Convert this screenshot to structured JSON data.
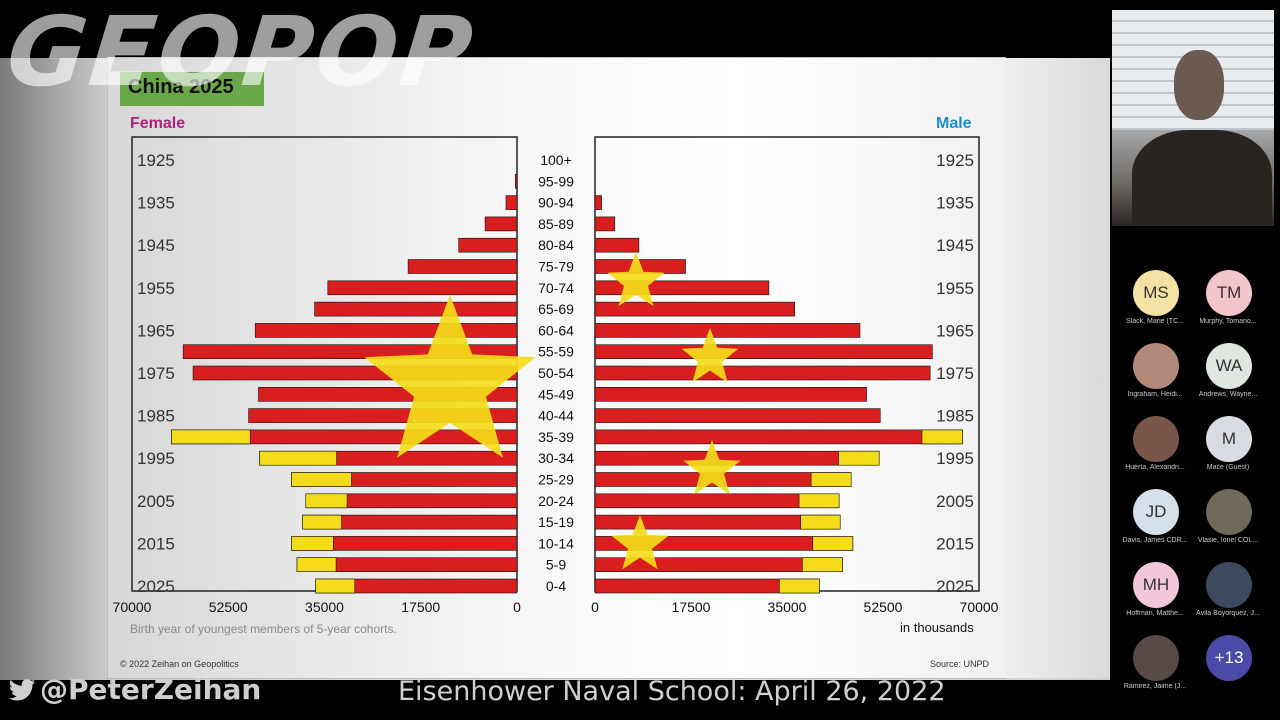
{
  "watermark": "GEOPOP",
  "slide": {
    "title": "China 2025",
    "female_label": "Female",
    "male_label": "Male",
    "footnote_left": "Birth year of youngest members of 5-year cohorts.",
    "footnote_right": "in thousands",
    "copyright": "© 2022 Zeihan on Geopolitics",
    "source": "Source: UNPD"
  },
  "chart_data": {
    "type": "bar",
    "title": "China 2025",
    "orientation": "horizontal population pyramid",
    "xlabel": "in thousands",
    "xlim": [
      0,
      70000
    ],
    "x_ticks_left": [
      "70000",
      "52500",
      "35000",
      "17500",
      "0"
    ],
    "x_ticks_right": [
      "0",
      "17500",
      "35000",
      "52500",
      "70000"
    ],
    "age_groups": [
      "100+",
      "95-99",
      "90-94",
      "85-89",
      "80-84",
      "75-79",
      "70-74",
      "65-69",
      "60-64",
      "55-59",
      "50-54",
      "45-49",
      "40-44",
      "35-39",
      "30-34",
      "25-29",
      "20-24",
      "15-19",
      "10-14",
      "5-9",
      "0-4"
    ],
    "birth_year_labels": [
      "1925",
      "1935",
      "1945",
      "1955",
      "1965",
      "1975",
      "1985",
      "1995",
      "2005",
      "2015",
      "2025"
    ],
    "birth_year_label_rows": [
      0,
      2,
      4,
      6,
      8,
      10,
      12,
      14,
      16,
      18,
      20
    ],
    "series": [
      {
        "name": "Female",
        "color": "#d81e1e",
        "highlight_color": "#f4dc1a",
        "values": [
          0,
          300,
          2000,
          5800,
          10600,
          19800,
          34400,
          36800,
          47600,
          60700,
          58900,
          47000,
          48800,
          62800,
          46800,
          41000,
          38400,
          39000,
          41000,
          40000,
          36600
        ],
        "highlight_values": [
          0,
          0,
          0,
          0,
          0,
          0,
          0,
          0,
          0,
          0,
          0,
          0,
          0,
          14300,
          14000,
          10900,
          7500,
          7100,
          7600,
          7100,
          7100
        ]
      },
      {
        "name": "Male",
        "color": "#d81e1e",
        "highlight_color": "#f4dc1a",
        "values": [
          0,
          0,
          1200,
          3600,
          8000,
          16500,
          31700,
          36400,
          48300,
          61500,
          61100,
          49500,
          52000,
          67000,
          51800,
          46700,
          44500,
          44700,
          47000,
          45100,
          40900
        ],
        "highlight_values": [
          0,
          0,
          0,
          0,
          0,
          0,
          0,
          0,
          0,
          0,
          0,
          0,
          0,
          7400,
          7400,
          7300,
          7300,
          7200,
          7300,
          7300,
          7300
        ]
      }
    ],
    "grid": false,
    "legend": "top"
  },
  "footer": {
    "handle": "@PeterZeihan",
    "event": "Eisenhower Naval School: April 26, 2022"
  },
  "participants": [
    {
      "initials": "MS",
      "name": "Slack, Marie (TC...",
      "color": "#f3e2a4",
      "photo": false
    },
    {
      "initials": "TM",
      "name": "Murphy, Tomano...",
      "color": "#f4c4cc",
      "photo": false
    },
    {
      "initials": "",
      "name": "Ingraham, Heidi...",
      "color": "#b3897a",
      "photo": true
    },
    {
      "initials": "WA",
      "name": "Andrews, Wayne...",
      "color": "#dfe5df",
      "photo": false
    },
    {
      "initials": "",
      "name": "Huerta, Alexandri...",
      "color": "#7a5549",
      "photo": true
    },
    {
      "initials": "M",
      "name": "Mace (Guest)",
      "color": "#d9dde3",
      "photo": false
    },
    {
      "initials": "JD",
      "name": "Davis, James CDR...",
      "color": "#d6e0ea",
      "photo": false
    },
    {
      "initials": "",
      "name": "Vlasie, Ionel COL...",
      "color": "#6f6a5a",
      "photo": true
    },
    {
      "initials": "MH",
      "name": "Hoffman, Matthe...",
      "color": "#f3c6da",
      "photo": false
    },
    {
      "initials": "",
      "name": "Avila Boyorquez, J...",
      "color": "#3b4a5f",
      "photo": true
    },
    {
      "initials": "",
      "name": "Ramirez, Jaime (J...",
      "color": "#5a4a45",
      "photo": true
    },
    {
      "initials": "+13",
      "name": "",
      "color": "#4b4aa8",
      "photo": false
    }
  ]
}
